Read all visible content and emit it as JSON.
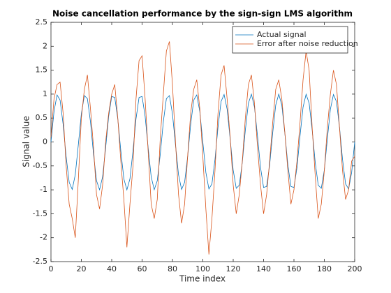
{
  "chart_data": {
    "type": "line",
    "title": "Noise cancellation performance by the sign-sign LMS algorithm",
    "x_label": "Time index",
    "y_label": "Signal value",
    "x": [
      0,
      2,
      4,
      6,
      8,
      10,
      12,
      14,
      16,
      18,
      20,
      22,
      24,
      26,
      28,
      30,
      32,
      34,
      36,
      38,
      40,
      42,
      44,
      46,
      48,
      50,
      52,
      54,
      56,
      58,
      60,
      62,
      64,
      66,
      68,
      70,
      72,
      74,
      76,
      78,
      80,
      82,
      84,
      86,
      88,
      90,
      92,
      94,
      96,
      98,
      100,
      102,
      104,
      106,
      108,
      110,
      112,
      114,
      116,
      118,
      120,
      122,
      124,
      126,
      128,
      130,
      132,
      134,
      136,
      138,
      140,
      142,
      144,
      146,
      148,
      150,
      152,
      154,
      156,
      158,
      160,
      162,
      164,
      166,
      168,
      170,
      172,
      174,
      176,
      178,
      180,
      182,
      184,
      186,
      188,
      190,
      192,
      194,
      196,
      198,
      200
    ],
    "series": [
      {
        "name": "Actual signal",
        "color": "#0072bd",
        "values": [
          0,
          0.637,
          0.982,
          0.876,
          0.368,
          -0.309,
          -0.844,
          -0.992,
          -0.685,
          -0.063,
          0.588,
          0.969,
          0.905,
          0.426,
          -0.249,
          -0.809,
          -0.998,
          -0.729,
          -0.125,
          0.536,
          0.951,
          0.93,
          0.482,
          -0.187,
          -0.771,
          -1,
          -0.771,
          -0.187,
          0.482,
          0.93,
          0.951,
          0.536,
          -0.125,
          -0.729,
          -0.998,
          -0.809,
          -0.249,
          0.426,
          0.905,
          0.969,
          0.588,
          -0.063,
          -0.685,
          -0.992,
          -0.844,
          -0.309,
          0.368,
          0.876,
          0.982,
          0.637,
          0,
          -0.637,
          -0.982,
          -0.876,
          -0.368,
          0.309,
          0.844,
          0.992,
          0.685,
          0.063,
          -0.588,
          -0.969,
          -0.905,
          -0.426,
          0.249,
          0.809,
          0.998,
          0.729,
          0.125,
          -0.536,
          -0.951,
          -0.93,
          -0.482,
          0.187,
          0.771,
          1,
          0.771,
          0.187,
          -0.482,
          -0.93,
          -0.951,
          -0.536,
          0.125,
          0.729,
          0.998,
          0.809,
          0.249,
          -0.426,
          -0.905,
          -0.969,
          -0.588,
          0.063,
          0.685,
          0.992,
          0.844,
          0.309,
          -0.368,
          -0.876,
          -0.982,
          -0.637,
          0
        ]
      },
      {
        "name": "Error after noise reduction",
        "color": "#d95319",
        "values": [
          0.1,
          0.9,
          1.2,
          1.25,
          0.6,
          -0.5,
          -1.3,
          -1.6,
          -2.0,
          -0.8,
          0.5,
          1.1,
          1.4,
          0.7,
          -0.1,
          -1.1,
          -1.4,
          -0.9,
          0.0,
          0.6,
          1.0,
          1.2,
          0.5,
          -0.4,
          -1.2,
          -2.2,
          -1.3,
          -0.5,
          0.9,
          1.7,
          1.8,
          0.9,
          -0.2,
          -1.3,
          -1.6,
          -1.2,
          0.1,
          1.0,
          1.9,
          2.1,
          1.2,
          0.0,
          -1.1,
          -1.7,
          -1.3,
          -0.3,
          0.6,
          1.1,
          1.3,
          0.7,
          -0.3,
          -1.4,
          -2.35,
          -1.6,
          -0.6,
          0.6,
          1.4,
          1.6,
          0.9,
          0.1,
          -0.9,
          -1.5,
          -1.1,
          -0.4,
          0.5,
          1.2,
          1.4,
          0.8,
          -0.1,
          -0.9,
          -1.5,
          -1.1,
          -0.4,
          0.4,
          1.1,
          1.3,
          0.9,
          0.2,
          -0.6,
          -1.3,
          -1.0,
          -0.4,
          0.4,
          1.3,
          1.9,
          1.5,
          0.3,
          -0.7,
          -1.6,
          -1.3,
          -0.6,
          0.3,
          1.0,
          1.5,
          1.2,
          0.3,
          -0.6,
          -1.2,
          -1.0,
          -0.4,
          -0.3
        ]
      }
    ],
    "xlim": [
      0,
      200
    ],
    "xticks": [
      0,
      20,
      40,
      60,
      80,
      100,
      120,
      140,
      160,
      180,
      200
    ],
    "ylim": [
      -2.5,
      2.5
    ],
    "yticks": [
      -2.5,
      -2,
      -1.5,
      -1,
      -0.5,
      0,
      0.5,
      1,
      1.5,
      2,
      2.5
    ],
    "grid": false,
    "legend": "top-right"
  }
}
